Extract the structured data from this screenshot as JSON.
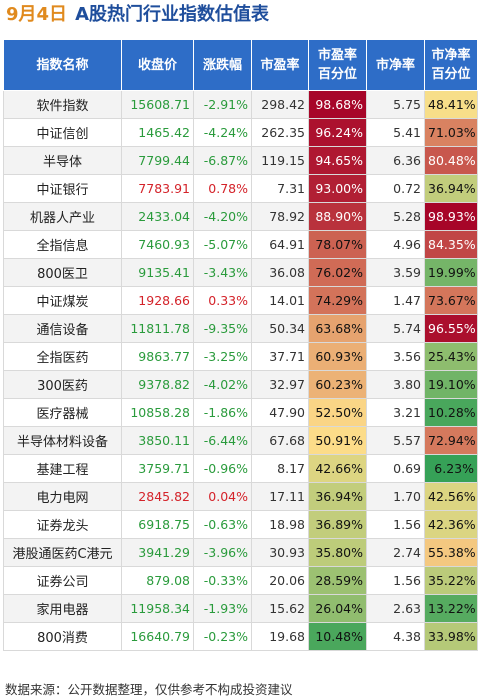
{
  "title": {
    "date": "9月4日",
    "text": "A股热门行业指数估值表"
  },
  "headers": [
    "指数名称",
    "收盘价",
    "涨跌幅",
    "市盈率",
    "市盈率\n百分位",
    "市净率",
    "市净率\n百分位"
  ],
  "rows": [
    {
      "name": "软件指数",
      "close": "15608.71",
      "change": "-2.91%",
      "pe": "298.42",
      "pe_pct": "98.68%",
      "pb": "5.75",
      "pb_pct": "48.41%"
    },
    {
      "name": "中证信创",
      "close": "1465.42",
      "change": "-4.24%",
      "pe": "262.35",
      "pe_pct": "96.24%",
      "pb": "5.41",
      "pb_pct": "71.03%"
    },
    {
      "name": "半导体",
      "close": "7799.44",
      "change": "-6.87%",
      "pe": "119.15",
      "pe_pct": "94.65%",
      "pb": "6.36",
      "pb_pct": "80.48%"
    },
    {
      "name": "中证银行",
      "close": "7783.91",
      "change": "0.78%",
      "pe": "7.31",
      "pe_pct": "93.00%",
      "pb": "0.72",
      "pb_pct": "36.94%"
    },
    {
      "name": "机器人产业",
      "close": "2433.04",
      "change": "-4.20%",
      "pe": "78.92",
      "pe_pct": "88.90%",
      "pb": "5.28",
      "pb_pct": "98.93%"
    },
    {
      "name": "全指信息",
      "close": "7460.93",
      "change": "-5.07%",
      "pe": "64.91",
      "pe_pct": "78.07%",
      "pb": "4.96",
      "pb_pct": "84.35%"
    },
    {
      "name": "800医卫",
      "close": "9135.41",
      "change": "-3.43%",
      "pe": "36.08",
      "pe_pct": "76.02%",
      "pb": "3.59",
      "pb_pct": "19.99%"
    },
    {
      "name": "中证煤炭",
      "close": "1928.66",
      "change": "0.33%",
      "pe": "14.01",
      "pe_pct": "74.29%",
      "pb": "1.47",
      "pb_pct": "73.67%"
    },
    {
      "name": "通信设备",
      "close": "11811.78",
      "change": "-9.35%",
      "pe": "50.34",
      "pe_pct": "63.68%",
      "pb": "5.74",
      "pb_pct": "96.55%"
    },
    {
      "name": "全指医药",
      "close": "9863.77",
      "change": "-3.25%",
      "pe": "37.71",
      "pe_pct": "60.93%",
      "pb": "3.56",
      "pb_pct": "25.43%"
    },
    {
      "name": "300医药",
      "close": "9378.82",
      "change": "-4.02%",
      "pe": "32.97",
      "pe_pct": "60.23%",
      "pb": "3.80",
      "pb_pct": "19.10%"
    },
    {
      "name": "医疗器械",
      "close": "10858.28",
      "change": "-1.86%",
      "pe": "47.90",
      "pe_pct": "52.50%",
      "pb": "3.21",
      "pb_pct": "10.28%"
    },
    {
      "name": "半导体材料设备",
      "close": "3850.11",
      "change": "-6.44%",
      "pe": "67.68",
      "pe_pct": "50.91%",
      "pb": "5.57",
      "pb_pct": "72.94%"
    },
    {
      "name": "基建工程",
      "close": "3759.71",
      "change": "-0.96%",
      "pe": "8.17",
      "pe_pct": "42.66%",
      "pb": "0.69",
      "pb_pct": "6.23%"
    },
    {
      "name": "电力电网",
      "close": "2845.82",
      "change": "0.04%",
      "pe": "17.11",
      "pe_pct": "36.94%",
      "pb": "1.70",
      "pb_pct": "42.56%"
    },
    {
      "name": "证券龙头",
      "close": "6918.75",
      "change": "-0.63%",
      "pe": "18.98",
      "pe_pct": "36.89%",
      "pb": "1.56",
      "pb_pct": "42.36%"
    },
    {
      "name": "港股通医药C港元",
      "close": "3941.29",
      "change": "-3.96%",
      "pe": "30.93",
      "pe_pct": "35.80%",
      "pb": "2.74",
      "pb_pct": "55.38%"
    },
    {
      "name": "证券公司",
      "close": "879.08",
      "change": "-0.33%",
      "pe": "20.06",
      "pe_pct": "28.59%",
      "pb": "1.56",
      "pb_pct": "35.22%"
    },
    {
      "name": "家用电器",
      "close": "11958.34",
      "change": "-1.93%",
      "pe": "15.62",
      "pe_pct": "26.04%",
      "pb": "2.63",
      "pb_pct": "13.22%"
    },
    {
      "name": "800消费",
      "close": "16640.79",
      "change": "-0.23%",
      "pe": "19.68",
      "pe_pct": "10.48%",
      "pb": "4.38",
      "pb_pct": "33.98%"
    }
  ],
  "colors": {
    "header_bg": "#2e6dc7",
    "title": "#1f4e9c",
    "date": "#e08a1e",
    "up": "#d4232a",
    "down": "#2a9b3c",
    "heat_high": "#a50026",
    "heat_mid": "#fee08b",
    "heat_low": "#1a9850"
  },
  "footer": "数据来源：公开数据整理，仅供参考不构成投资建议"
}
